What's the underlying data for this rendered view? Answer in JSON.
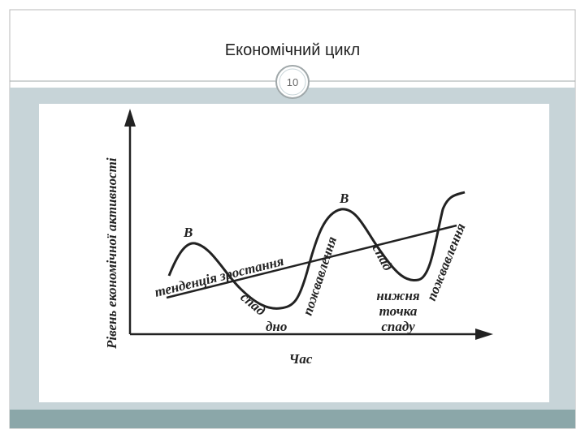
{
  "slide": {
    "title": "Економічний цикл",
    "page_number": "10"
  },
  "diagram": {
    "y_axis_label": "Рівень економічної активності",
    "x_axis_label": "Час",
    "peak_1": "В",
    "peak_2": "В",
    "trend": "тенденція зростання",
    "contraction_1": "спад",
    "trough": "дно",
    "recovery_1": "пожвавлення",
    "contraction_2": "спад",
    "lowest_point": [
      "нижня",
      "точка",
      "спаду"
    ],
    "recovery_2": "пожвавлення"
  }
}
